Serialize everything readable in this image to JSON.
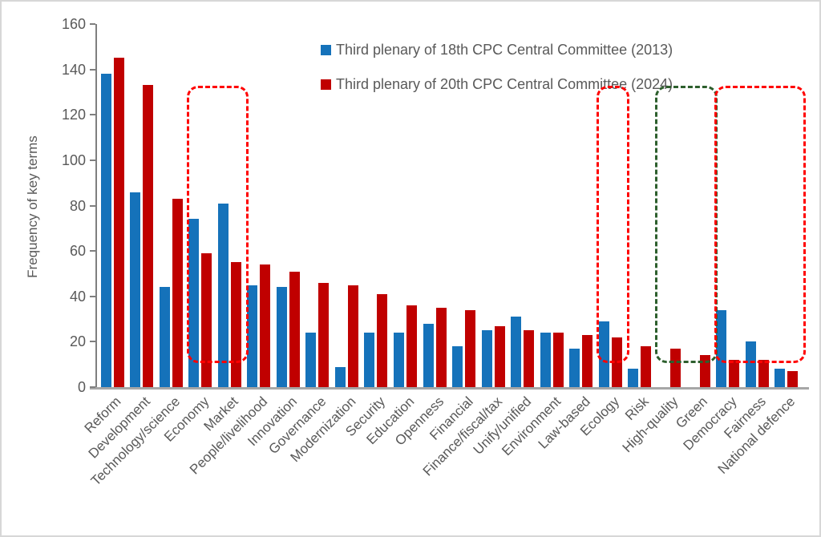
{
  "chart_data": {
    "type": "bar",
    "title": "",
    "xlabel": "",
    "ylabel": "Frequency of key terms",
    "ylim": [
      0,
      160
    ],
    "ytick_step": 20,
    "grid": false,
    "legend_position": "top-center",
    "categories": [
      "Reform",
      "Development",
      "Technology/science",
      "Economy",
      "Market",
      "People/livelihood",
      "Innovation",
      "Governance",
      "Modernization",
      "Security",
      "Education",
      "Openness",
      "Financial",
      "Finance/fiscal/tax",
      "Unify/unified",
      "Environment",
      "Law-based",
      "Ecology",
      "Risk",
      "High-quality",
      "Green",
      "Democracy",
      "Fairness",
      "National defence"
    ],
    "series": [
      {
        "name": "Third plenary of 18th CPC Central Committee (2013)",
        "color": "#1572BA",
        "values": [
          138,
          86,
          44,
          74,
          81,
          45,
          44,
          24,
          9,
          24,
          24,
          28,
          18,
          25,
          31,
          24,
          17,
          29,
          8,
          0,
          0,
          34,
          20,
          8
        ]
      },
      {
        "name": "Third plenary of 20th CPC Central Committee (2024)",
        "color": "#C00000",
        "values": [
          145,
          133,
          83,
          59,
          55,
          54,
          51,
          46,
          45,
          41,
          36,
          35,
          34,
          27,
          25,
          24,
          23,
          22,
          18,
          17,
          14,
          12,
          12,
          7
        ]
      }
    ],
    "annotations": [
      {
        "shape": "dashed-box",
        "color": "#FF0000",
        "from": "Economy",
        "to": "Market"
      },
      {
        "shape": "dashed-box",
        "color": "#FF0000",
        "from": "Ecology",
        "to": "Ecology"
      },
      {
        "shape": "dashed-box",
        "color": "#2D5F2D",
        "from": "High-quality",
        "to": "Green"
      },
      {
        "shape": "dashed-box",
        "color": "#FF0000",
        "from": "Democracy",
        "to": "National defence"
      }
    ],
    "axis_colors": {
      "axis_line": "#7F7F7F",
      "baseline": "#A6A6A6",
      "tick_text": "#595959"
    }
  }
}
